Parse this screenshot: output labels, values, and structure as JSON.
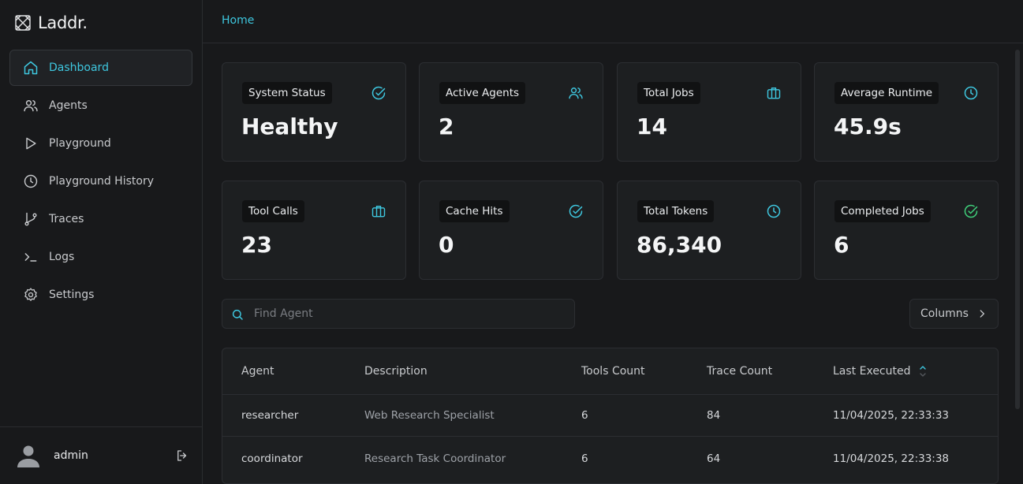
{
  "brand": {
    "name": "Laddr."
  },
  "sidebar": {
    "items": [
      {
        "label": "Dashboard",
        "icon": "home-icon",
        "active": true
      },
      {
        "label": "Agents",
        "icon": "users-icon"
      },
      {
        "label": "Playground",
        "icon": "play-icon"
      },
      {
        "label": "Playground History",
        "icon": "clock-icon"
      },
      {
        "label": "Traces",
        "icon": "git-branch-icon"
      },
      {
        "label": "Logs",
        "icon": "terminal-icon"
      },
      {
        "label": "Settings",
        "icon": "gear-icon"
      }
    ],
    "user": {
      "name": "admin"
    }
  },
  "breadcrumb": {
    "current": "Home"
  },
  "stats": [
    {
      "label": "System Status",
      "value": "Healthy",
      "icon": "check-circle-icon"
    },
    {
      "label": "Active Agents",
      "value": "2",
      "icon": "users-icon"
    },
    {
      "label": "Total Jobs",
      "value": "14",
      "icon": "briefcase-icon"
    },
    {
      "label": "Average Runtime",
      "value": "45.9s",
      "icon": "clock-icon"
    },
    {
      "label": "Tool Calls",
      "value": "23",
      "icon": "briefcase-icon"
    },
    {
      "label": "Cache Hits",
      "value": "0",
      "icon": "check-circle-icon"
    },
    {
      "label": "Total Tokens",
      "value": "86,340",
      "icon": "clock-icon"
    },
    {
      "label": "Completed Jobs",
      "value": "6",
      "icon": "check-circle-icon"
    }
  ],
  "colors": {
    "accent": "#3ec7df",
    "success": "#3fcf7a"
  },
  "search": {
    "placeholder": "Find Agent",
    "value": ""
  },
  "columns_button": {
    "label": "Columns"
  },
  "table": {
    "headers": [
      "Agent",
      "Description",
      "Tools Count",
      "Trace Count",
      "Last Executed"
    ],
    "rows": [
      [
        "researcher",
        "Web Research Specialist",
        "6",
        "84",
        "11/04/2025, 22:33:33"
      ],
      [
        "coordinator",
        "Research Task Coordinator",
        "6",
        "64",
        "11/04/2025, 22:33:38"
      ]
    ]
  }
}
